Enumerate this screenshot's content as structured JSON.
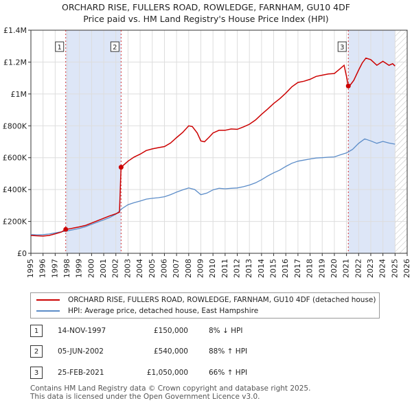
{
  "title_line1": "ORCHARD RISE, FULLERS ROAD, ROWLEDGE, FARNHAM, GU10 4DF",
  "title_line2": "Price paid vs. HM Land Registry's House Price Index (HPI)",
  "chart_data": {
    "type": "line",
    "xlim": [
      1995,
      2026
    ],
    "ylim": [
      0,
      1400000
    ],
    "x_ticks": [
      1995,
      1996,
      1997,
      1998,
      1999,
      2000,
      2001,
      2002,
      2003,
      2004,
      2005,
      2006,
      2007,
      2008,
      2009,
      2010,
      2011,
      2012,
      2013,
      2014,
      2015,
      2016,
      2017,
      2018,
      2019,
      2020,
      2021,
      2022,
      2023,
      2024,
      2025,
      2026
    ],
    "y_ticks": [
      {
        "value": 0,
        "label": "£0"
      },
      {
        "value": 200000,
        "label": "£200K"
      },
      {
        "value": 400000,
        "label": "£400K"
      },
      {
        "value": 600000,
        "label": "£600K"
      },
      {
        "value": 800000,
        "label": "£800K"
      },
      {
        "value": 1000000,
        "label": "£1M"
      },
      {
        "value": 1200000,
        "label": "£1.2M"
      },
      {
        "value": 1400000,
        "label": "£1.4M"
      }
    ],
    "grid": true,
    "shaded_ranges": [
      [
        1997.87,
        2002.43
      ],
      [
        2021.15,
        2025.0
      ]
    ],
    "hatched_after": 2025.0,
    "colors": {
      "property": "#cc0000",
      "hpi": "#5b8cc8",
      "marker": "#cc0000",
      "vline": "#cc0000",
      "shade": "#dde6f7"
    },
    "series": [
      {
        "name": "ORCHARD RISE, FULLERS ROAD, ROWLEDGE, FARNHAM, GU10 4DF (detached house)",
        "points": [
          [
            1995.0,
            112000
          ],
          [
            1995.5,
            110000
          ],
          [
            1996.0,
            108000
          ],
          [
            1996.5,
            112000
          ],
          [
            1997.0,
            122000
          ],
          [
            1997.5,
            133000
          ],
          [
            1997.87,
            150000
          ],
          [
            1998.2,
            154000
          ],
          [
            1998.6,
            160000
          ],
          [
            1999.0,
            166000
          ],
          [
            1999.5,
            175000
          ],
          [
            2000.0,
            190000
          ],
          [
            2000.5,
            205000
          ],
          [
            2001.0,
            220000
          ],
          [
            2001.5,
            235000
          ],
          [
            2002.0,
            248000
          ],
          [
            2002.3,
            258000
          ],
          [
            2002.43,
            540000
          ],
          [
            2002.7,
            558000
          ],
          [
            2003.0,
            578000
          ],
          [
            2003.5,
            604000
          ],
          [
            2004.0,
            622000
          ],
          [
            2004.5,
            645000
          ],
          [
            2005.0,
            655000
          ],
          [
            2005.5,
            663000
          ],
          [
            2006.0,
            670000
          ],
          [
            2006.5,
            692000
          ],
          [
            2007.0,
            726000
          ],
          [
            2007.5,
            758000
          ],
          [
            2008.0,
            800000
          ],
          [
            2008.3,
            795000
          ],
          [
            2008.7,
            755000
          ],
          [
            2009.0,
            705000
          ],
          [
            2009.3,
            700000
          ],
          [
            2009.7,
            730000
          ],
          [
            2010.0,
            755000
          ],
          [
            2010.5,
            772000
          ],
          [
            2011.0,
            772000
          ],
          [
            2011.5,
            780000
          ],
          [
            2012.0,
            778000
          ],
          [
            2012.5,
            793000
          ],
          [
            2013.0,
            810000
          ],
          [
            2013.5,
            836000
          ],
          [
            2014.0,
            872000
          ],
          [
            2014.5,
            905000
          ],
          [
            2015.0,
            940000
          ],
          [
            2015.5,
            970000
          ],
          [
            2016.0,
            1005000
          ],
          [
            2016.5,
            1045000
          ],
          [
            2017.0,
            1072000
          ],
          [
            2017.5,
            1080000
          ],
          [
            2018.0,
            1092000
          ],
          [
            2018.5,
            1110000
          ],
          [
            2019.0,
            1118000
          ],
          [
            2019.5,
            1125000
          ],
          [
            2020.0,
            1128000
          ],
          [
            2020.5,
            1160000
          ],
          [
            2020.8,
            1180000
          ],
          [
            2021.0,
            1110000
          ],
          [
            2021.15,
            1050000
          ],
          [
            2021.3,
            1055000
          ],
          [
            2021.6,
            1085000
          ],
          [
            2022.0,
            1150000
          ],
          [
            2022.3,
            1195000
          ],
          [
            2022.6,
            1225000
          ],
          [
            2023.0,
            1215000
          ],
          [
            2023.5,
            1180000
          ],
          [
            2024.0,
            1205000
          ],
          [
            2024.5,
            1180000
          ],
          [
            2024.8,
            1190000
          ],
          [
            2025.0,
            1175000
          ]
        ]
      },
      {
        "name": "HPI: Average price, detached house, East Hampshire",
        "points": [
          [
            1995.0,
            118000
          ],
          [
            1995.5,
            116000
          ],
          [
            1996.0,
            117000
          ],
          [
            1996.5,
            121000
          ],
          [
            1997.0,
            128000
          ],
          [
            1997.5,
            135000
          ],
          [
            1998.0,
            141000
          ],
          [
            1998.5,
            148000
          ],
          [
            1999.0,
            156000
          ],
          [
            1999.5,
            167000
          ],
          [
            2000.0,
            182000
          ],
          [
            2000.5,
            196000
          ],
          [
            2001.0,
            210000
          ],
          [
            2001.5,
            225000
          ],
          [
            2002.0,
            245000
          ],
          [
            2002.5,
            280000
          ],
          [
            2003.0,
            305000
          ],
          [
            2003.5,
            318000
          ],
          [
            2004.0,
            328000
          ],
          [
            2004.5,
            340000
          ],
          [
            2005.0,
            345000
          ],
          [
            2005.5,
            349000
          ],
          [
            2006.0,
            355000
          ],
          [
            2006.5,
            368000
          ],
          [
            2007.0,
            384000
          ],
          [
            2007.5,
            398000
          ],
          [
            2008.0,
            410000
          ],
          [
            2008.5,
            400000
          ],
          [
            2009.0,
            368000
          ],
          [
            2009.5,
            378000
          ],
          [
            2010.0,
            398000
          ],
          [
            2010.5,
            408000
          ],
          [
            2011.0,
            405000
          ],
          [
            2011.5,
            408000
          ],
          [
            2012.0,
            410000
          ],
          [
            2012.5,
            418000
          ],
          [
            2013.0,
            428000
          ],
          [
            2013.5,
            442000
          ],
          [
            2014.0,
            462000
          ],
          [
            2014.5,
            485000
          ],
          [
            2015.0,
            505000
          ],
          [
            2015.5,
            522000
          ],
          [
            2016.0,
            545000
          ],
          [
            2016.5,
            565000
          ],
          [
            2017.0,
            578000
          ],
          [
            2017.5,
            585000
          ],
          [
            2018.0,
            592000
          ],
          [
            2018.5,
            598000
          ],
          [
            2019.0,
            600000
          ],
          [
            2019.5,
            603000
          ],
          [
            2020.0,
            605000
          ],
          [
            2020.5,
            618000
          ],
          [
            2021.0,
            630000
          ],
          [
            2021.5,
            652000
          ],
          [
            2022.0,
            690000
          ],
          [
            2022.5,
            718000
          ],
          [
            2023.0,
            705000
          ],
          [
            2023.5,
            690000
          ],
          [
            2024.0,
            702000
          ],
          [
            2024.5,
            692000
          ],
          [
            2025.0,
            685000
          ]
        ]
      }
    ],
    "sales": [
      {
        "label": "1",
        "x": 1997.87,
        "y": 150000
      },
      {
        "label": "2",
        "x": 2002.43,
        "y": 540000
      },
      {
        "label": "3",
        "x": 2021.15,
        "y": 1050000
      }
    ]
  },
  "legend": {
    "property_label": "ORCHARD RISE, FULLERS ROAD, ROWLEDGE, FARNHAM, GU10 4DF (detached house)",
    "hpi_label": "HPI: Average price, detached house, East Hampshire"
  },
  "transactions": [
    {
      "num": "1",
      "date": "14-NOV-1997",
      "price": "£150,000",
      "hpi": "8% ↓ HPI"
    },
    {
      "num": "2",
      "date": "05-JUN-2002",
      "price": "£540,000",
      "hpi": "88% ↑ HPI"
    },
    {
      "num": "3",
      "date": "25-FEB-2021",
      "price": "£1,050,000",
      "hpi": "66% ↑ HPI"
    }
  ],
  "footer": {
    "line1": "Contains HM Land Registry data © Crown copyright and database right 2025.",
    "line2": "This data is licensed under the Open Government Licence v3.0."
  }
}
